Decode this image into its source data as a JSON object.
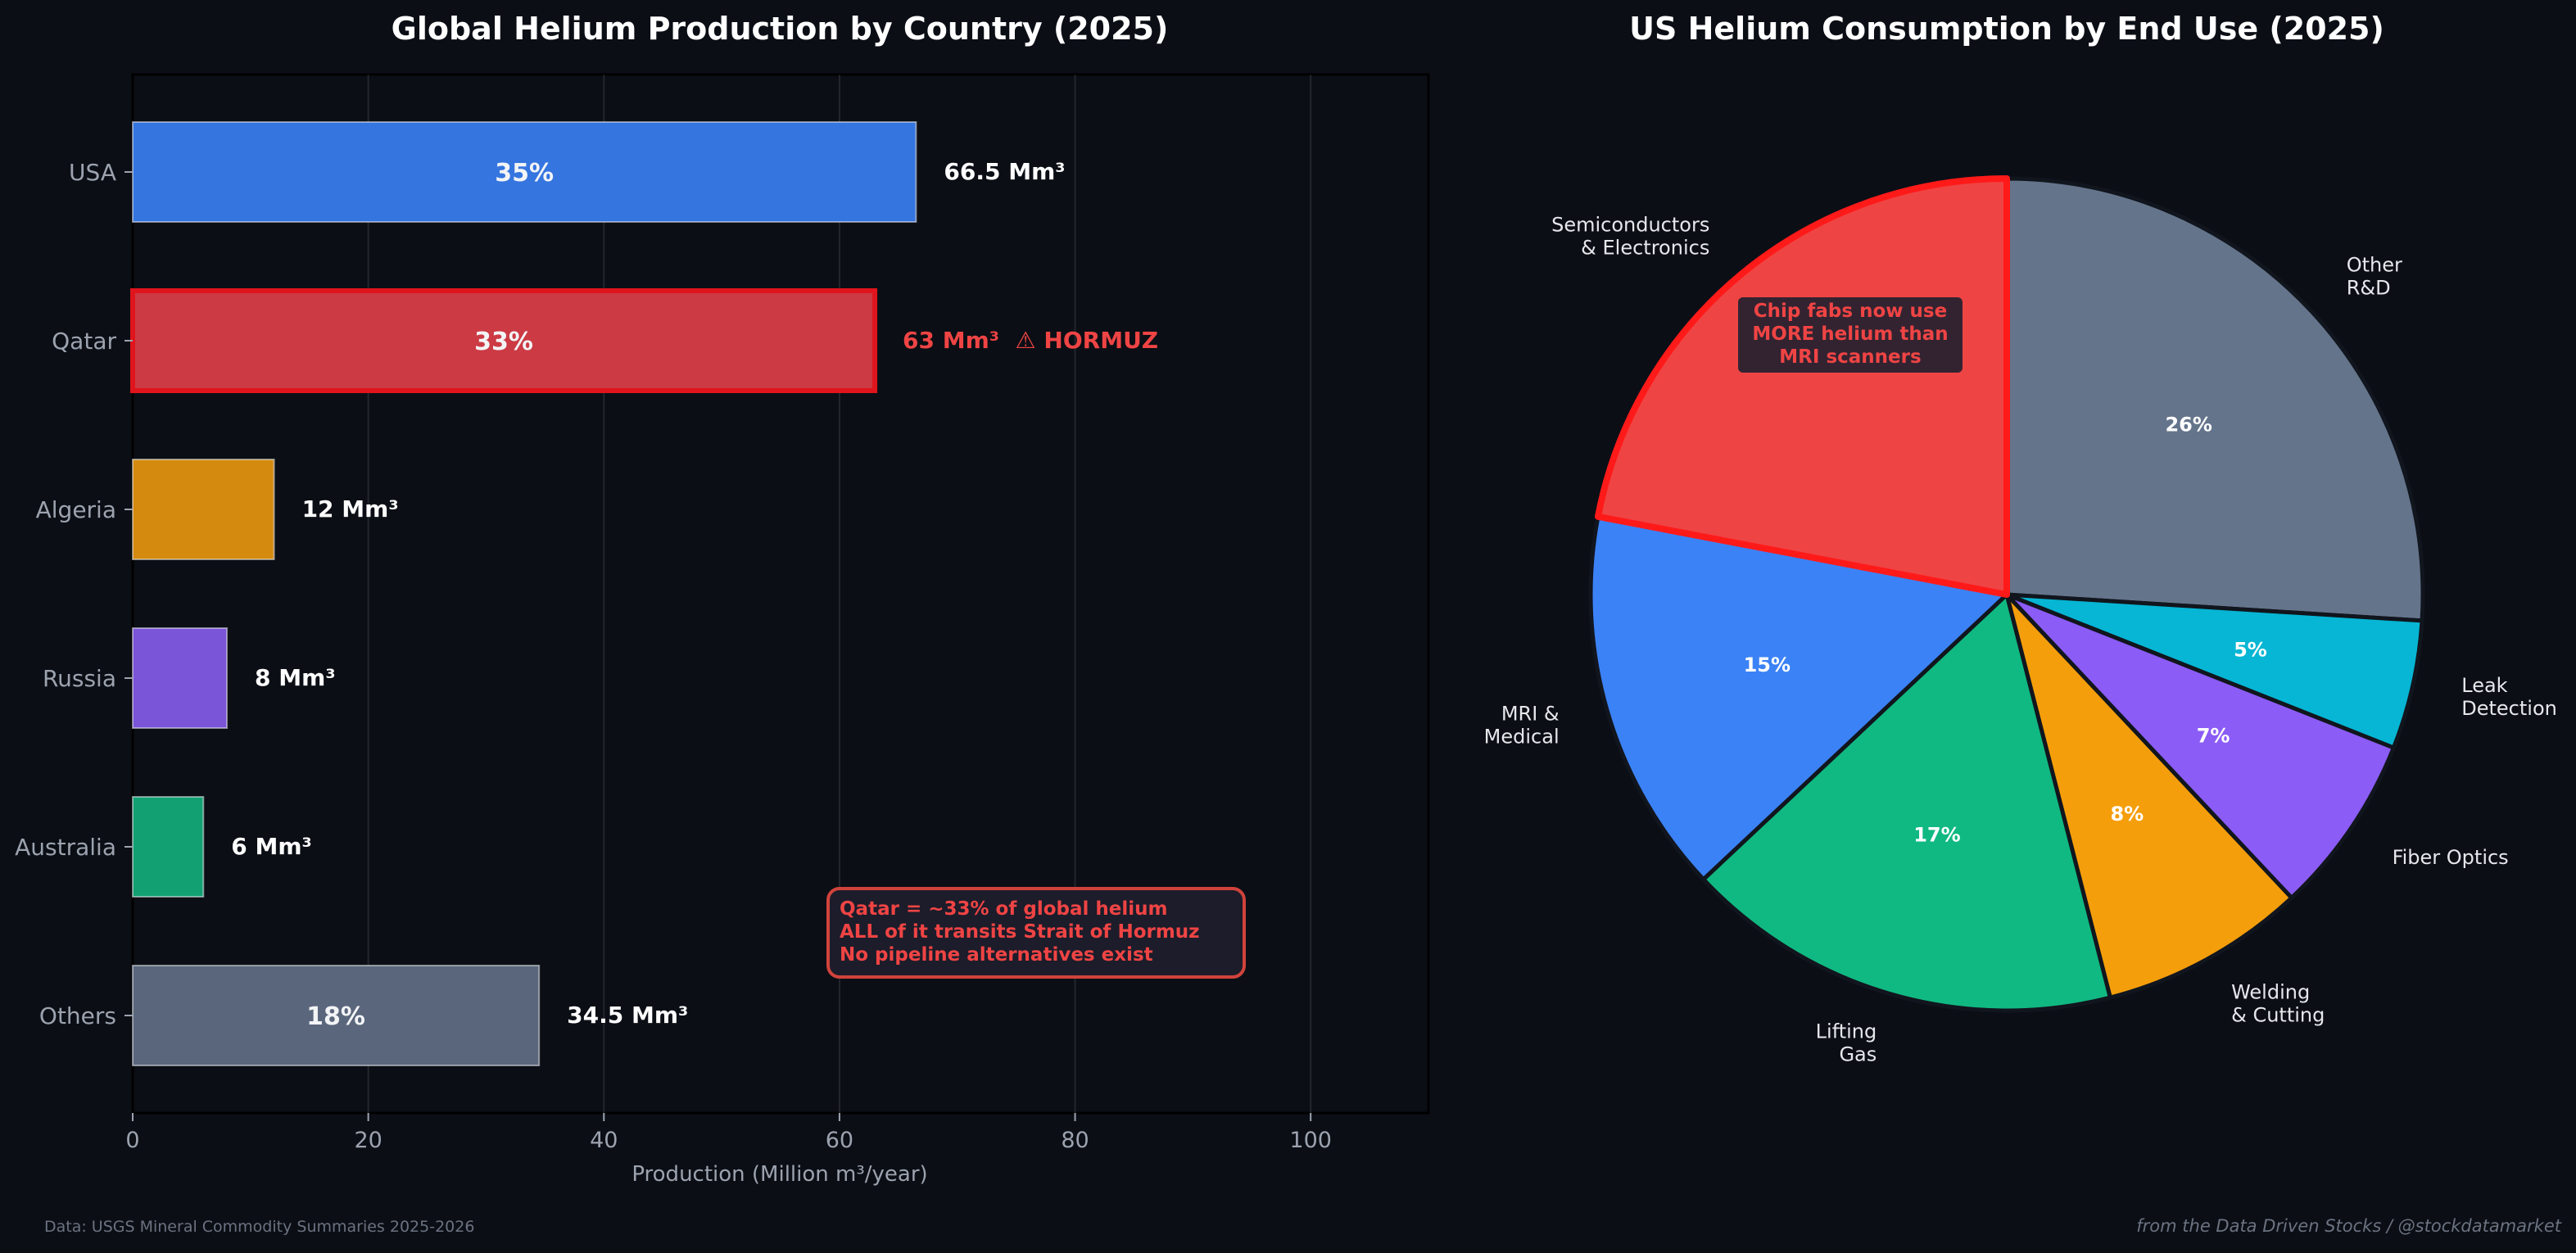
{
  "chart_data": [
    {
      "type": "bar",
      "orientation": "horizontal",
      "title": "Global Helium Production by Country (2025)",
      "xlabel": "Production (Million m³/year)",
      "ylabel": "",
      "xlim": [
        0,
        110
      ],
      "xticks": [
        "0",
        "20",
        "40",
        "60",
        "80",
        "100"
      ],
      "grid": "vertical",
      "categories": [
        "USA",
        "Qatar",
        "Algeria",
        "Russia",
        "Australia",
        "Others"
      ],
      "values": [
        66.5,
        63,
        12,
        8,
        6,
        34.5
      ],
      "value_labels": [
        "66.5 Mm³",
        "63 Mm³  ⚠ HORMUZ",
        "12 Mm³",
        "8 Mm³",
        "6 Mm³",
        "34.5 Mm³"
      ],
      "share_labels": [
        "35%",
        "33%",
        "",
        "",
        "",
        "18%"
      ],
      "colors": [
        "#3575e0",
        "#cc3a44",
        "#d4890f",
        "#7a55d8",
        "#12a072",
        "#5a667c"
      ],
      "highlight": "Qatar",
      "highlight_color": "#e0141c",
      "annotation": [
        "Qatar = ~33% of global helium",
        "ALL of it transits Strait of Hormuz",
        "No pipeline alternatives exist"
      ]
    },
    {
      "type": "pie",
      "title": "US Helium Consumption by End Use (2025)",
      "labels": [
        [
          "Other",
          "R&D"
        ],
        [
          "Leak",
          "Detection"
        ],
        [
          "Fiber Optics"
        ],
        [
          "Welding",
          "& Cutting"
        ],
        [
          "Lifting",
          "Gas"
        ],
        [
          "MRI &",
          "Medical"
        ],
        [
          "Semiconductors",
          "& Electronics"
        ]
      ],
      "values": [
        26,
        5,
        7,
        8,
        17,
        15,
        22
      ],
      "pct_labels": [
        "26%",
        "5%",
        "7%",
        "8%",
        "17%",
        "15%",
        ""
      ],
      "colors": [
        "#64748b",
        "#06b6d4",
        "#8b5cf6",
        "#f59e0b",
        "#10b981",
        "#3b82f6",
        "#ef4444"
      ],
      "highlight": "Semiconductors & Electronics",
      "annotation": [
        "Chip fabs now use",
        "MORE helium than",
        "MRI scanners"
      ]
    }
  ],
  "footer": {
    "source": "Data: USGS Mineral Commodity Summaries 2025-2026",
    "credit": "from the Data Driven Stocks / @stockdatamarket"
  }
}
